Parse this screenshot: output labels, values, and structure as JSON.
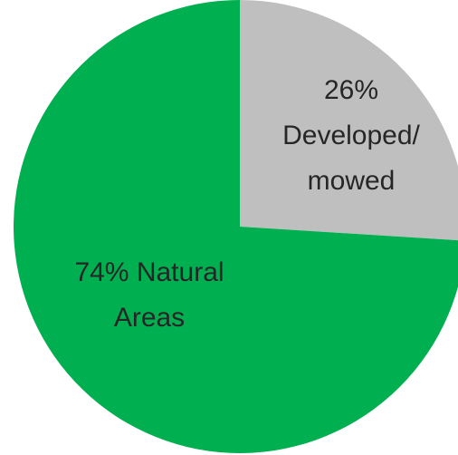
{
  "chart_data": {
    "type": "pie",
    "categories": [
      "Developed/ mowed",
      "Natural Areas"
    ],
    "values": [
      26,
      74
    ],
    "value_labels": [
      "26%",
      "74%"
    ],
    "colors": [
      "#bfbfbf",
      "#00b050"
    ]
  }
}
